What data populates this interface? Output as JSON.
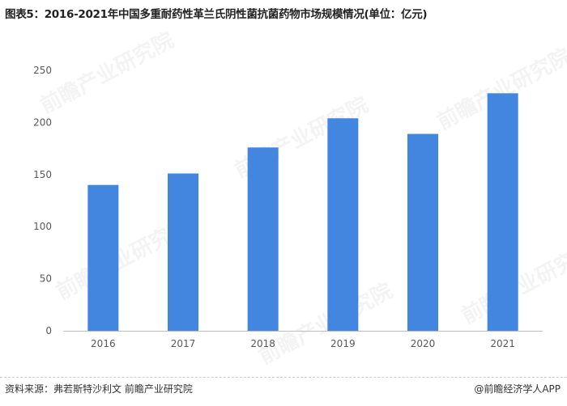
{
  "title": "图表5：2016-2021年中国多重耐药性革兰氏阴性菌抗菌药物市场规模情况(单位：亿元)",
  "watermark": "前瞻产业研究院",
  "source": "资料来源：弗若斯特沙利文 前瞻产业研究院",
  "brand": "@前瞻经济学人APP",
  "colors": {
    "bar": "#4286e0",
    "axis": "#bfbfbf",
    "text": "#595959"
  },
  "chart_data": {
    "type": "bar",
    "categories": [
      "2016",
      "2017",
      "2018",
      "2019",
      "2020",
      "2021"
    ],
    "values": [
      140,
      151,
      176,
      204,
      189,
      228
    ],
    "ylim": [
      0,
      250
    ],
    "yticks": [
      0,
      50,
      100,
      150,
      200,
      250
    ],
    "grid": false,
    "legend": "none"
  }
}
